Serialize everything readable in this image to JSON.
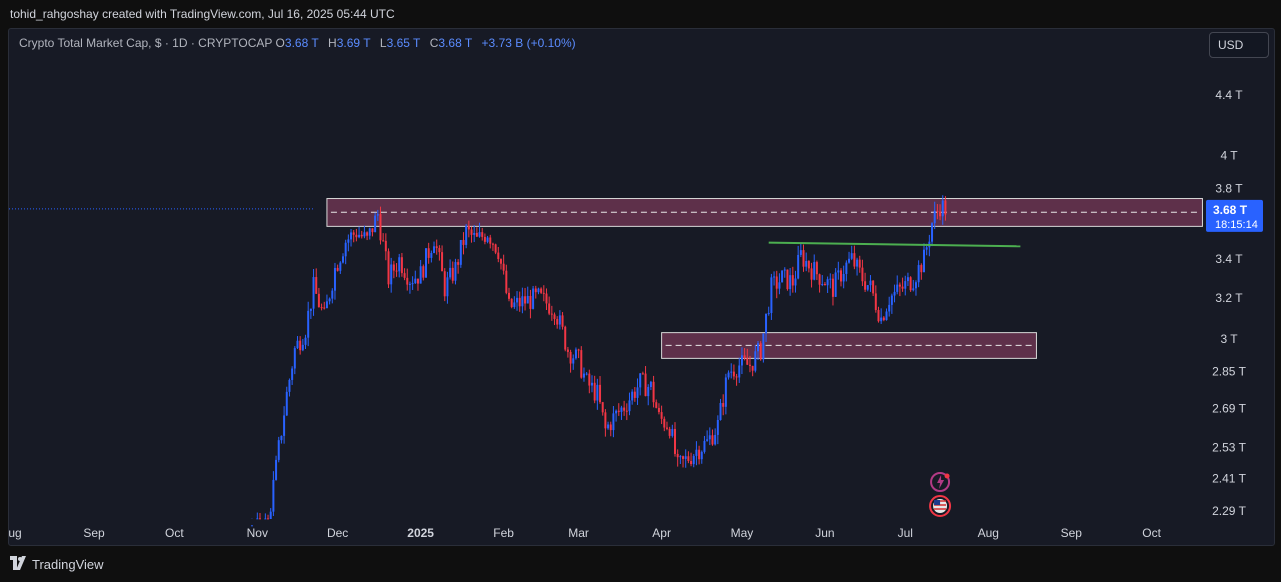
{
  "header": {
    "attribution": "tohid_rahgoshay created with TradingView.com, Jul 16, 2025 05:44 UTC"
  },
  "symbol": {
    "name": "Crypto Total Market Cap, $ · 1D · CRYPTOCAP",
    "o_label": "O",
    "o_value": "3.68 T",
    "h_label": "H",
    "h_value": "3.69 T",
    "l_label": "L",
    "l_value": "3.65 T",
    "c_label": "C",
    "c_value": "3.68 T",
    "change": "+3.73 B (+0.10%)"
  },
  "currency": "USD",
  "price_tag": {
    "price": "3.68 T",
    "countdown": "18:15:14"
  },
  "footer": {
    "brand": "TradingView"
  },
  "colors": {
    "up": "#2962ff",
    "down": "#f23645",
    "zone_fill": "#6b3551",
    "trendline": "#4caf50",
    "tag_bg": "#2962ff"
  },
  "icons": [
    "lightning-event-icon",
    "us-flag-event-icon",
    "tradingview-logo-icon"
  ],
  "chart_data": {
    "type": "candlestick",
    "title": "Crypto Total Market Cap",
    "scale": "log",
    "y_tick_labels": [
      "4.4 T",
      "4 T",
      "3.8 T",
      "3.4 T",
      "3.2 T",
      "3 T",
      "2.85 T",
      "2.69 T",
      "2.53 T",
      "2.41 T",
      "2.29 T"
    ],
    "y_tick_values": [
      4.4,
      4.0,
      3.8,
      3.4,
      3.2,
      3.0,
      2.85,
      2.69,
      2.53,
      2.41,
      2.29
    ],
    "x_tick_labels": [
      "Aug",
      "Sep",
      "Oct",
      "Nov",
      "Dec",
      "2025",
      "Feb",
      "Mar",
      "Apr",
      "May",
      "Jun",
      "Jul",
      "Aug",
      "Sep",
      "Oct"
    ],
    "x_tick_dates": [
      "2024-08-01",
      "2024-09-01",
      "2024-10-01",
      "2024-11-01",
      "2024-12-01",
      "2025-01-01",
      "2025-02-01",
      "2025-03-01",
      "2025-04-01",
      "2025-05-01",
      "2025-06-01",
      "2025-07-01",
      "2025-08-01",
      "2025-09-01",
      "2025-10-01"
    ],
    "last_price": 3.68,
    "ohlc_last": {
      "open": 3.68,
      "high": 3.69,
      "low": 3.65,
      "close": 3.68
    },
    "close_path": [
      [
        "2024-10-27",
        2.2
      ],
      [
        "2024-11-05",
        2.25
      ],
      [
        "2024-11-08",
        2.45
      ],
      [
        "2024-11-12",
        2.75
      ],
      [
        "2024-11-15",
        2.95
      ],
      [
        "2024-11-19",
        3.05
      ],
      [
        "2024-11-22",
        3.25
      ],
      [
        "2024-11-26",
        3.1
      ],
      [
        "2024-11-30",
        3.35
      ],
      [
        "2024-12-04",
        3.5
      ],
      [
        "2024-12-08",
        3.55
      ],
      [
        "2024-12-12",
        3.5
      ],
      [
        "2024-12-16",
        3.65
      ],
      [
        "2024-12-20",
        3.3
      ],
      [
        "2024-12-24",
        3.4
      ],
      [
        "2024-12-28",
        3.3
      ],
      [
        "2025-01-01",
        3.32
      ],
      [
        "2025-01-06",
        3.52
      ],
      [
        "2025-01-10",
        3.25
      ],
      [
        "2025-01-14",
        3.35
      ],
      [
        "2025-01-18",
        3.55
      ],
      [
        "2025-01-22",
        3.5
      ],
      [
        "2025-01-26",
        3.55
      ],
      [
        "2025-01-30",
        3.45
      ],
      [
        "2025-02-03",
        3.15
      ],
      [
        "2025-02-08",
        3.18
      ],
      [
        "2025-02-14",
        3.2
      ],
      [
        "2025-02-20",
        3.15
      ],
      [
        "2025-02-25",
        2.95
      ],
      [
        "2025-03-01",
        2.9
      ],
      [
        "2025-03-04",
        2.8
      ],
      [
        "2025-03-08",
        2.75
      ],
      [
        "2025-03-11",
        2.6
      ],
      [
        "2025-03-14",
        2.65
      ],
      [
        "2025-03-18",
        2.7
      ],
      [
        "2025-03-24",
        2.8
      ],
      [
        "2025-03-28",
        2.78
      ],
      [
        "2025-03-31",
        2.65
      ],
      [
        "2025-04-04",
        2.62
      ],
      [
        "2025-04-07",
        2.45
      ],
      [
        "2025-04-10",
        2.48
      ],
      [
        "2025-04-14",
        2.52
      ],
      [
        "2025-04-18",
        2.55
      ],
      [
        "2025-04-22",
        2.62
      ],
      [
        "2025-04-26",
        2.85
      ],
      [
        "2025-04-30",
        2.88
      ],
      [
        "2025-05-04",
        2.88
      ],
      [
        "2025-05-08",
        2.95
      ],
      [
        "2025-05-12",
        3.25
      ],
      [
        "2025-05-16",
        3.3
      ],
      [
        "2025-05-20",
        3.28
      ],
      [
        "2025-05-23",
        3.42
      ],
      [
        "2025-05-27",
        3.35
      ],
      [
        "2025-05-31",
        3.3
      ],
      [
        "2025-06-04",
        3.25
      ],
      [
        "2025-06-08",
        3.35
      ],
      [
        "2025-06-11",
        3.4
      ],
      [
        "2025-06-15",
        3.3
      ],
      [
        "2025-06-18",
        3.25
      ],
      [
        "2025-06-22",
        3.1
      ],
      [
        "2025-06-25",
        3.2
      ],
      [
        "2025-06-30",
        3.25
      ],
      [
        "2025-07-04",
        3.3
      ],
      [
        "2025-07-08",
        3.4
      ],
      [
        "2025-07-11",
        3.6
      ],
      [
        "2025-07-14",
        3.7
      ],
      [
        "2025-07-16",
        3.68
      ]
    ],
    "annotations": [
      {
        "type": "zone",
        "from": "2024-11-27",
        "to": "2025-10-20",
        "low": 3.58,
        "high": 3.74,
        "midline": 3.66
      },
      {
        "type": "zone",
        "from": "2025-04-01",
        "to": "2025-08-19",
        "low": 2.91,
        "high": 3.03,
        "midline": 2.97
      },
      {
        "type": "trendline",
        "from": "2025-05-11",
        "to": "2025-08-13",
        "values": [
          3.49,
          3.47
        ]
      },
      {
        "type": "event",
        "date": "2025-07-14",
        "label": "lightning"
      },
      {
        "type": "event",
        "date": "2025-07-14",
        "label": "us-flag"
      }
    ]
  }
}
